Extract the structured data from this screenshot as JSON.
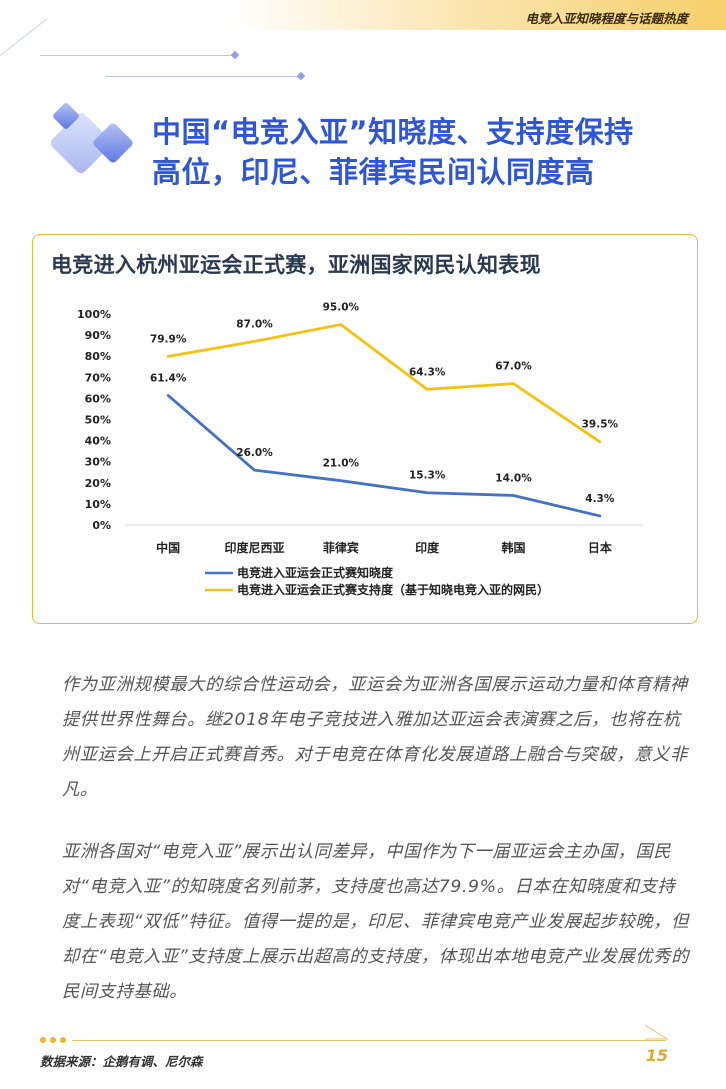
{
  "header": {
    "text": "电竞入亚知晓程度与话题热度"
  },
  "title": {
    "line1": "中国“电竞入亚”知晓度、支持度保持",
    "line2": "高位，印尼、菲律宾民间认同度高"
  },
  "chart_data": {
    "type": "line",
    "title": "电竞进入杭州亚运会正式赛，亚洲国家网民认知表现",
    "categories": [
      "中国",
      "印度尼西亚",
      "菲律宾",
      "印度",
      "韩国",
      "日本"
    ],
    "series": [
      {
        "name": "电竞进入亚运会正式赛知晓度",
        "values": [
          61.4,
          26.0,
          21.0,
          15.3,
          14.0,
          4.3
        ],
        "color": "#4472c4",
        "labels": [
          "61.4%",
          "26.0%",
          "21.0%",
          "15.3%",
          "14.0%",
          "4.3%"
        ]
      },
      {
        "name": "电竞进入亚运会正式赛支持度（基于知晓电竞入亚的网民）",
        "values": [
          79.9,
          87.0,
          95.0,
          64.3,
          67.0,
          39.5
        ],
        "color": "#f5c211",
        "labels": [
          "79.9%",
          "87.0%",
          "95.0%",
          "64.3%",
          "67.0%",
          "39.5%"
        ]
      }
    ],
    "ylim": [
      0,
      100
    ],
    "yticks": [
      "0%",
      "10%",
      "20%",
      "30%",
      "40%",
      "50%",
      "60%",
      "70%",
      "80%",
      "90%",
      "100%"
    ],
    "grid": false,
    "legend": "bottom"
  },
  "paragraphs": [
    "作为亚洲规模最大的综合性运动会，亚运会为亚洲各国展示运动力量和体育精神提供世界性舞台。继2018年电子竞技进入雅加达亚运会表演赛之后，也将在杭州亚运会上开启正式赛首秀。对于电竞在体育化发展道路上融合与突破，意义非凡。",
    "亚洲各国对“电竞入亚”展示出认同差异，中国作为下一届亚运会主办国，国民对“电竞入亚”的知晓度名列前茅，支持度也高达79.9%。日本在知晓度和支持度上表现“双低”特征。值得一提的是，印尼、菲律宾电竞产业发展起步较晚，但却在“电竞入亚”支持度上展示出超高的支持度，体现出本地电竞产业发展优秀的民间支持基础。"
  ],
  "footer": {
    "source": "数据来源：企鹅有调、尼尔森",
    "page": "15"
  }
}
